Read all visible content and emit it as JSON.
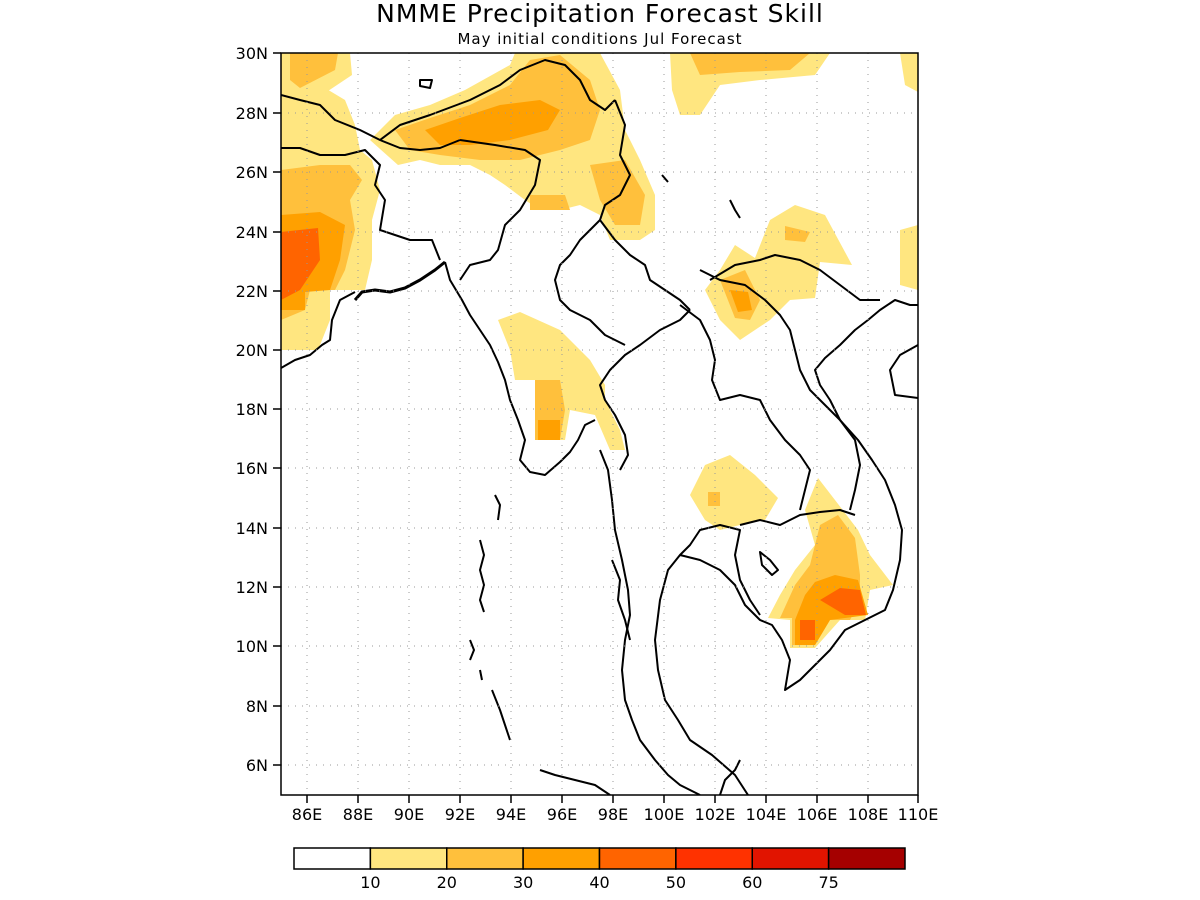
{
  "title": "NMME Precipitation Forecast Skill",
  "subtitle": "May initial conditions  Jul Forecast",
  "map": {
    "lon_range": [
      85,
      110
    ],
    "lat_range": [
      5,
      30
    ],
    "lon_ticks": [
      "86E",
      "88E",
      "90E",
      "92E",
      "94E",
      "96E",
      "98E",
      "100E",
      "102E",
      "104E",
      "106E",
      "108E",
      "110E"
    ],
    "lat_ticks": [
      "30N",
      "28N",
      "26N",
      "24N",
      "22N",
      "20N",
      "18N",
      "16N",
      "14N",
      "12N",
      "10N",
      "8N",
      "6N"
    ],
    "grid": "dotted"
  },
  "colorbar": {
    "colors": [
      "#ffffff",
      "#ffe680",
      "#ffc03c",
      "#ffa000",
      "#ff6400",
      "#ff3200",
      "#e11400",
      "#a50000"
    ],
    "labels": [
      "10",
      "20",
      "30",
      "40",
      "50",
      "60",
      "75"
    ]
  }
}
